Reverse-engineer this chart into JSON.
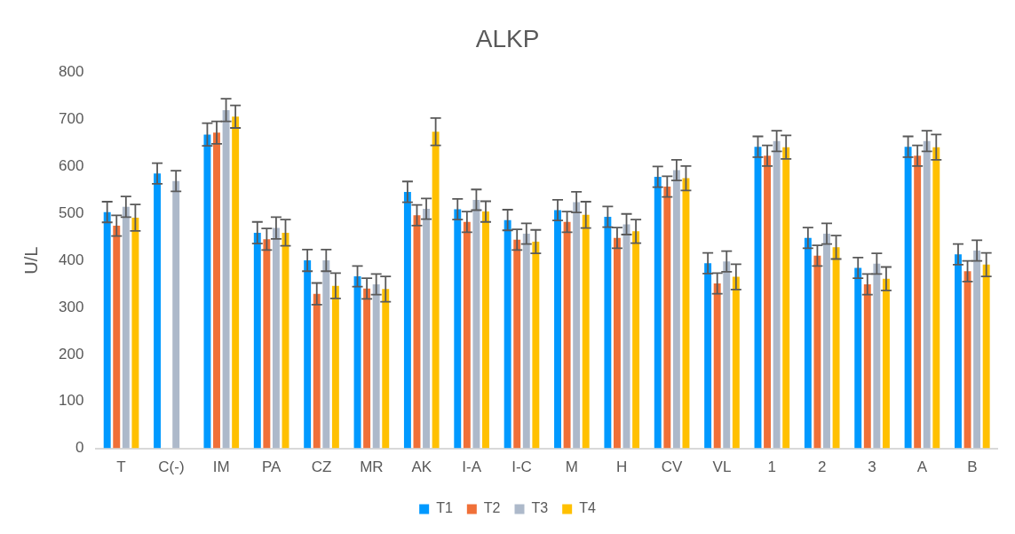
{
  "chart_data": {
    "type": "bar",
    "title": "ALKP",
    "ylabel": "U/L",
    "categories": [
      "T",
      "C(-)",
      "IM",
      "PA",
      "CZ",
      "MR",
      "AK",
      "I-A",
      "I-C",
      "M",
      "H",
      "CV",
      "VL",
      "1",
      "2",
      "3",
      "A",
      "B"
    ],
    "series": [
      {
        "name": "T1",
        "color": "#0099ff",
        "values": [
          503,
          585,
          668,
          459,
          400,
          366,
          546,
          509,
          486,
          507,
          493,
          578,
          394,
          642,
          448,
          384,
          642,
          413
        ],
        "errors": [
          22,
          22,
          24,
          23,
          23,
          22,
          22,
          22,
          22,
          22,
          22,
          22,
          22,
          22,
          22,
          22,
          22,
          22
        ]
      },
      {
        "name": "T2",
        "color": "#f07038",
        "values": [
          474,
          null,
          672,
          445,
          329,
          340,
          496,
          482,
          444,
          482,
          448,
          557,
          351,
          623,
          410,
          349,
          623,
          377
        ],
        "errors": [
          22,
          null,
          24,
          23,
          23,
          22,
          22,
          22,
          22,
          22,
          22,
          22,
          22,
          22,
          22,
          22,
          22,
          22
        ]
      },
      {
        "name": "T3",
        "color": "#adb9ca",
        "values": [
          514,
          569,
          720,
          469,
          400,
          349,
          510,
          529,
          457,
          524,
          477,
          592,
          398,
          654,
          457,
          393,
          654,
          421
        ],
        "errors": [
          22,
          22,
          24,
          23,
          23,
          22,
          22,
          22,
          22,
          22,
          22,
          22,
          22,
          22,
          22,
          22,
          22,
          22
        ]
      },
      {
        "name": "T4",
        "color": "#ffc000",
        "values": [
          491,
          null,
          706,
          459,
          346,
          339,
          674,
          504,
          440,
          497,
          462,
          575,
          365,
          641,
          428,
          361,
          641,
          391
        ],
        "errors": [
          28,
          null,
          24,
          28,
          27,
          27,
          29,
          22,
          25,
          28,
          25,
          26,
          27,
          25,
          25,
          25,
          27,
          25
        ]
      }
    ],
    "ylim": [
      0,
      800
    ],
    "yticks": [
      0,
      100,
      200,
      300,
      400,
      500,
      600,
      700,
      800
    ],
    "grid": false,
    "legend": "bottom"
  }
}
